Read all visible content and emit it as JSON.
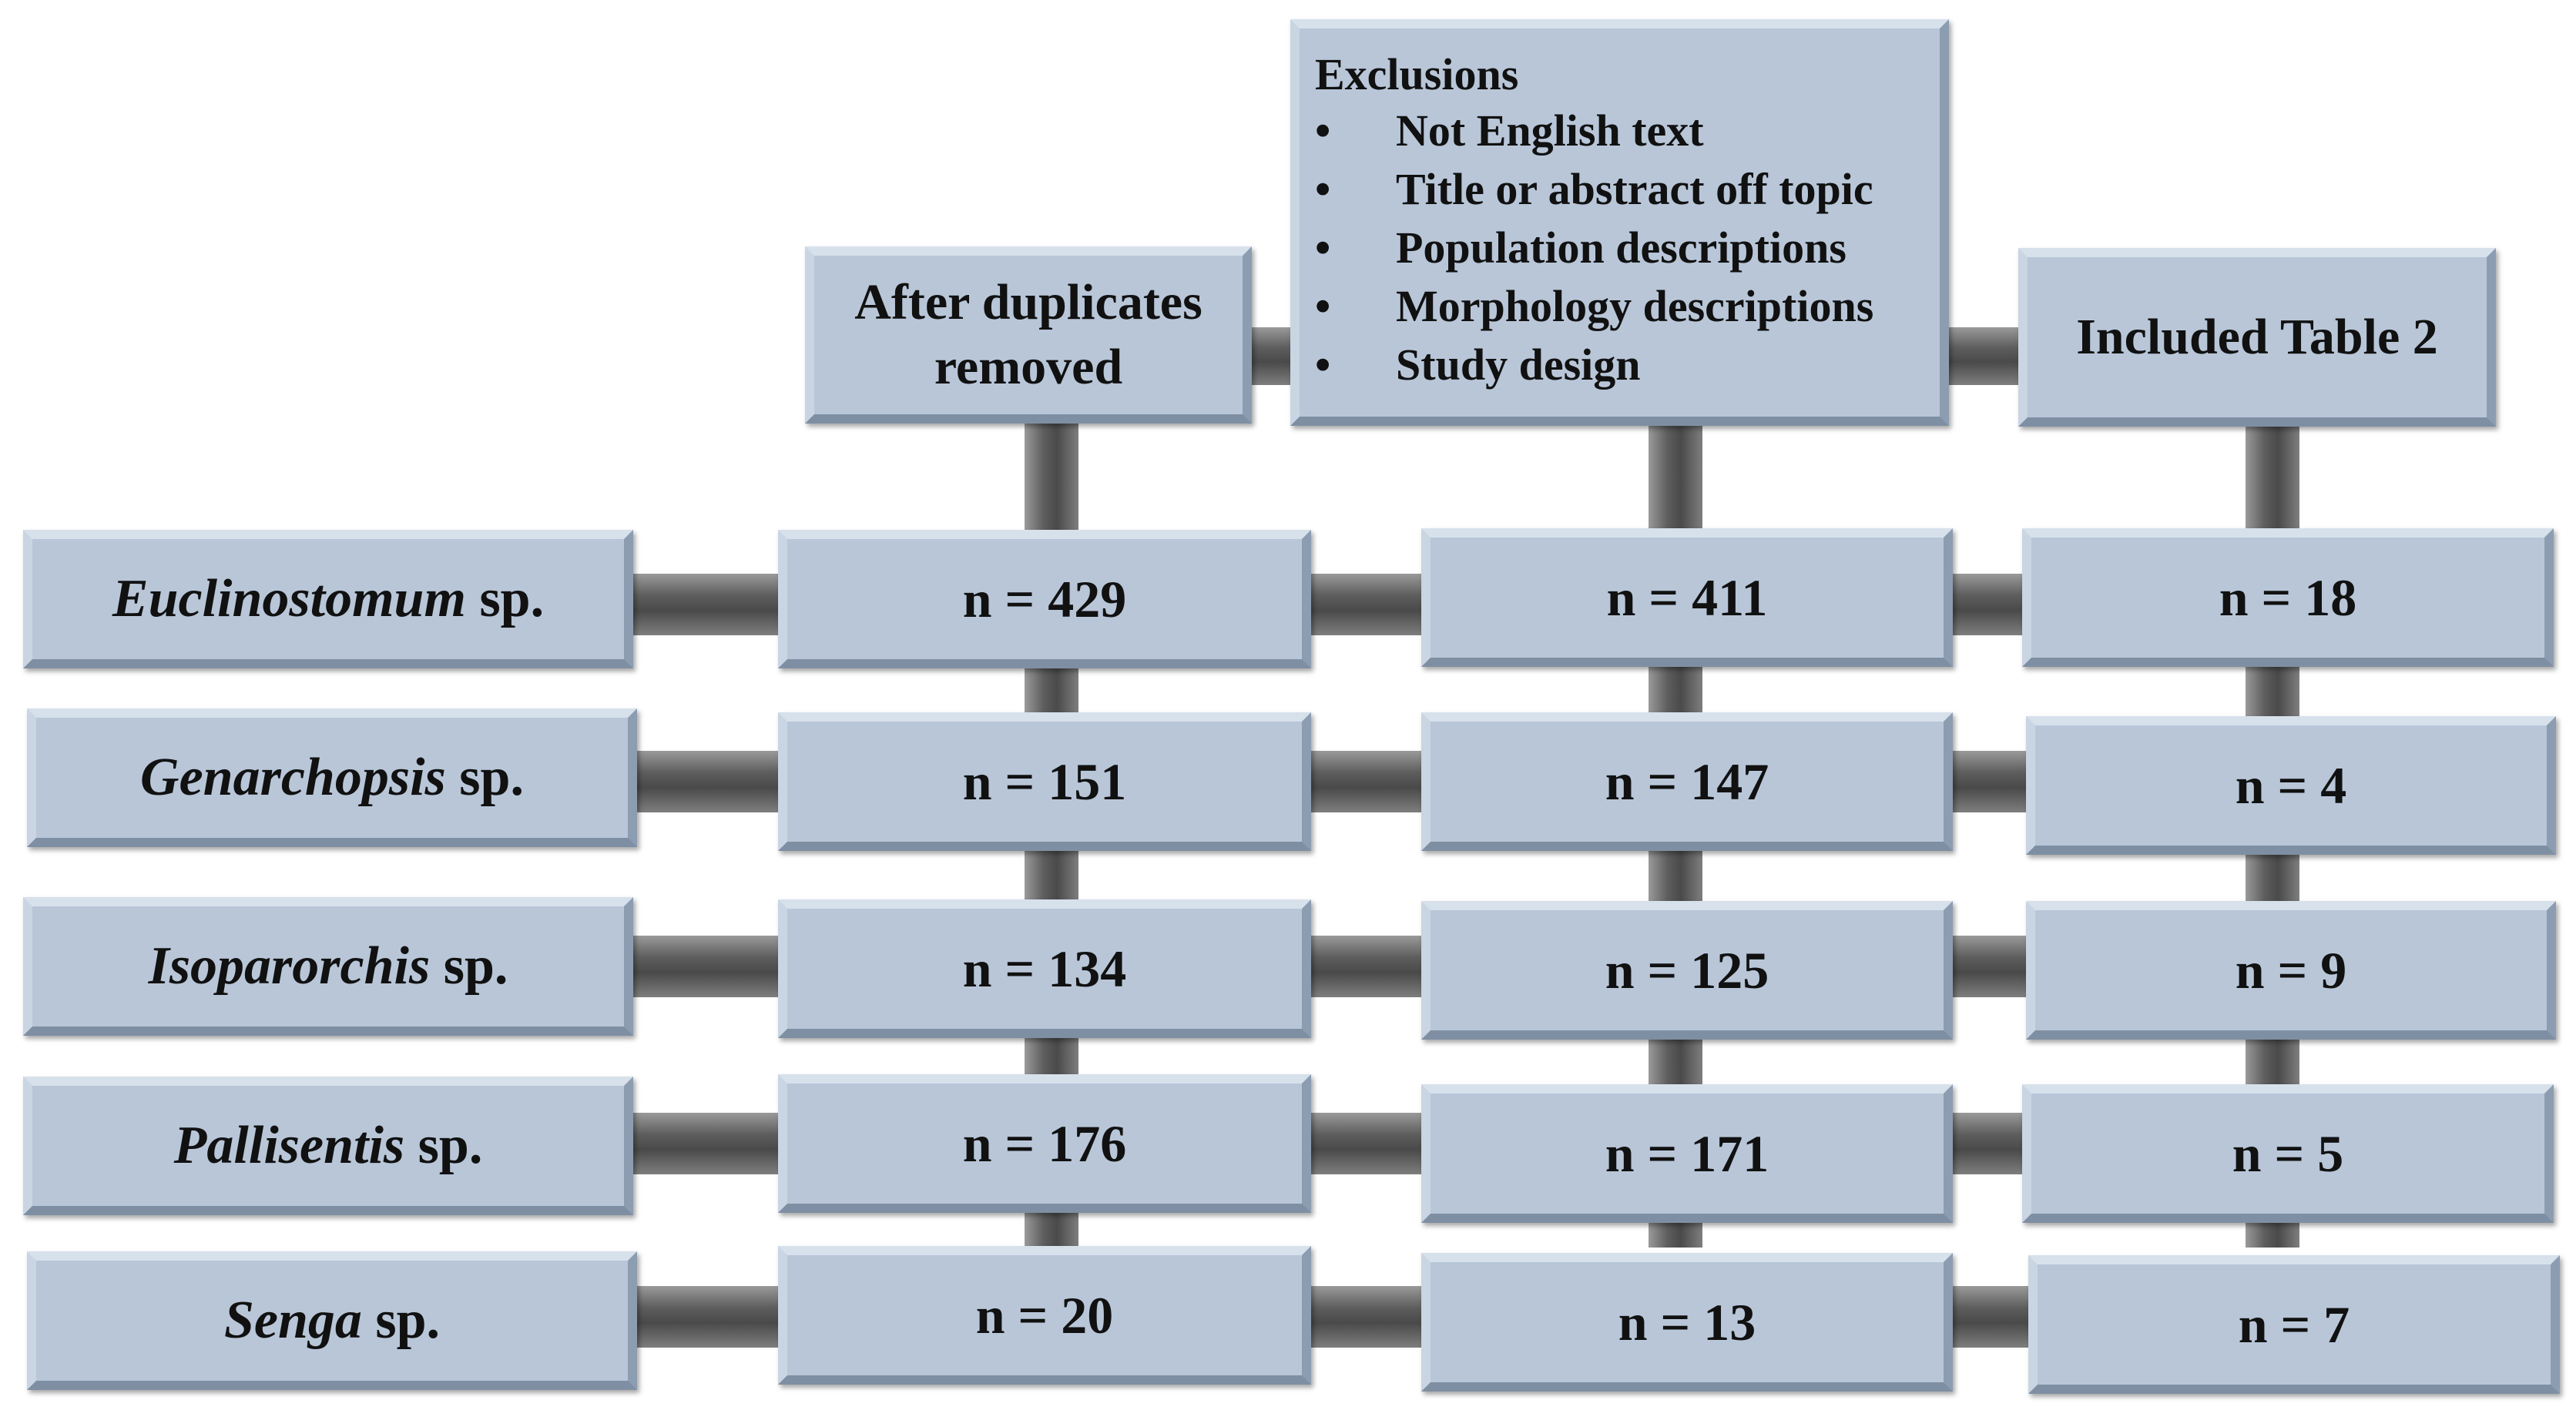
{
  "headers": {
    "after_duplicates": "After duplicates removed",
    "exclusions_title": "Exclusions",
    "exclusions_items": [
      "Not English text",
      "Title or abstract off topic",
      "Population descriptions",
      "Morphology descriptions",
      "Study design"
    ],
    "bullet": "•",
    "included": "Included Table 2"
  },
  "rows": [
    {
      "genus": "Euclinostomum",
      "suffix": "sp.",
      "after_duplicates": "n = 429",
      "excluded": "n = 411",
      "included": "n = 18"
    },
    {
      "genus": "Genarchopsis",
      "suffix": "sp.",
      "after_duplicates": "n = 151",
      "excluded": "n = 147",
      "included": "n = 4"
    },
    {
      "genus": "Isoparorchis",
      "suffix": "sp.",
      "after_duplicates": "n = 134",
      "excluded": "n = 125",
      "included": "n = 9"
    },
    {
      "genus": "Pallisentis",
      "suffix": "sp.",
      "after_duplicates": "n = 176",
      "excluded": "n = 171",
      "included": "n = 5"
    },
    {
      "genus": "Senga",
      "suffix": "sp.",
      "after_duplicates": "n = 20",
      "excluded": "n = 13",
      "included": "n = 7"
    }
  ],
  "colors": {
    "box": "#b8c6d8",
    "connector": "#5e5e5e"
  }
}
